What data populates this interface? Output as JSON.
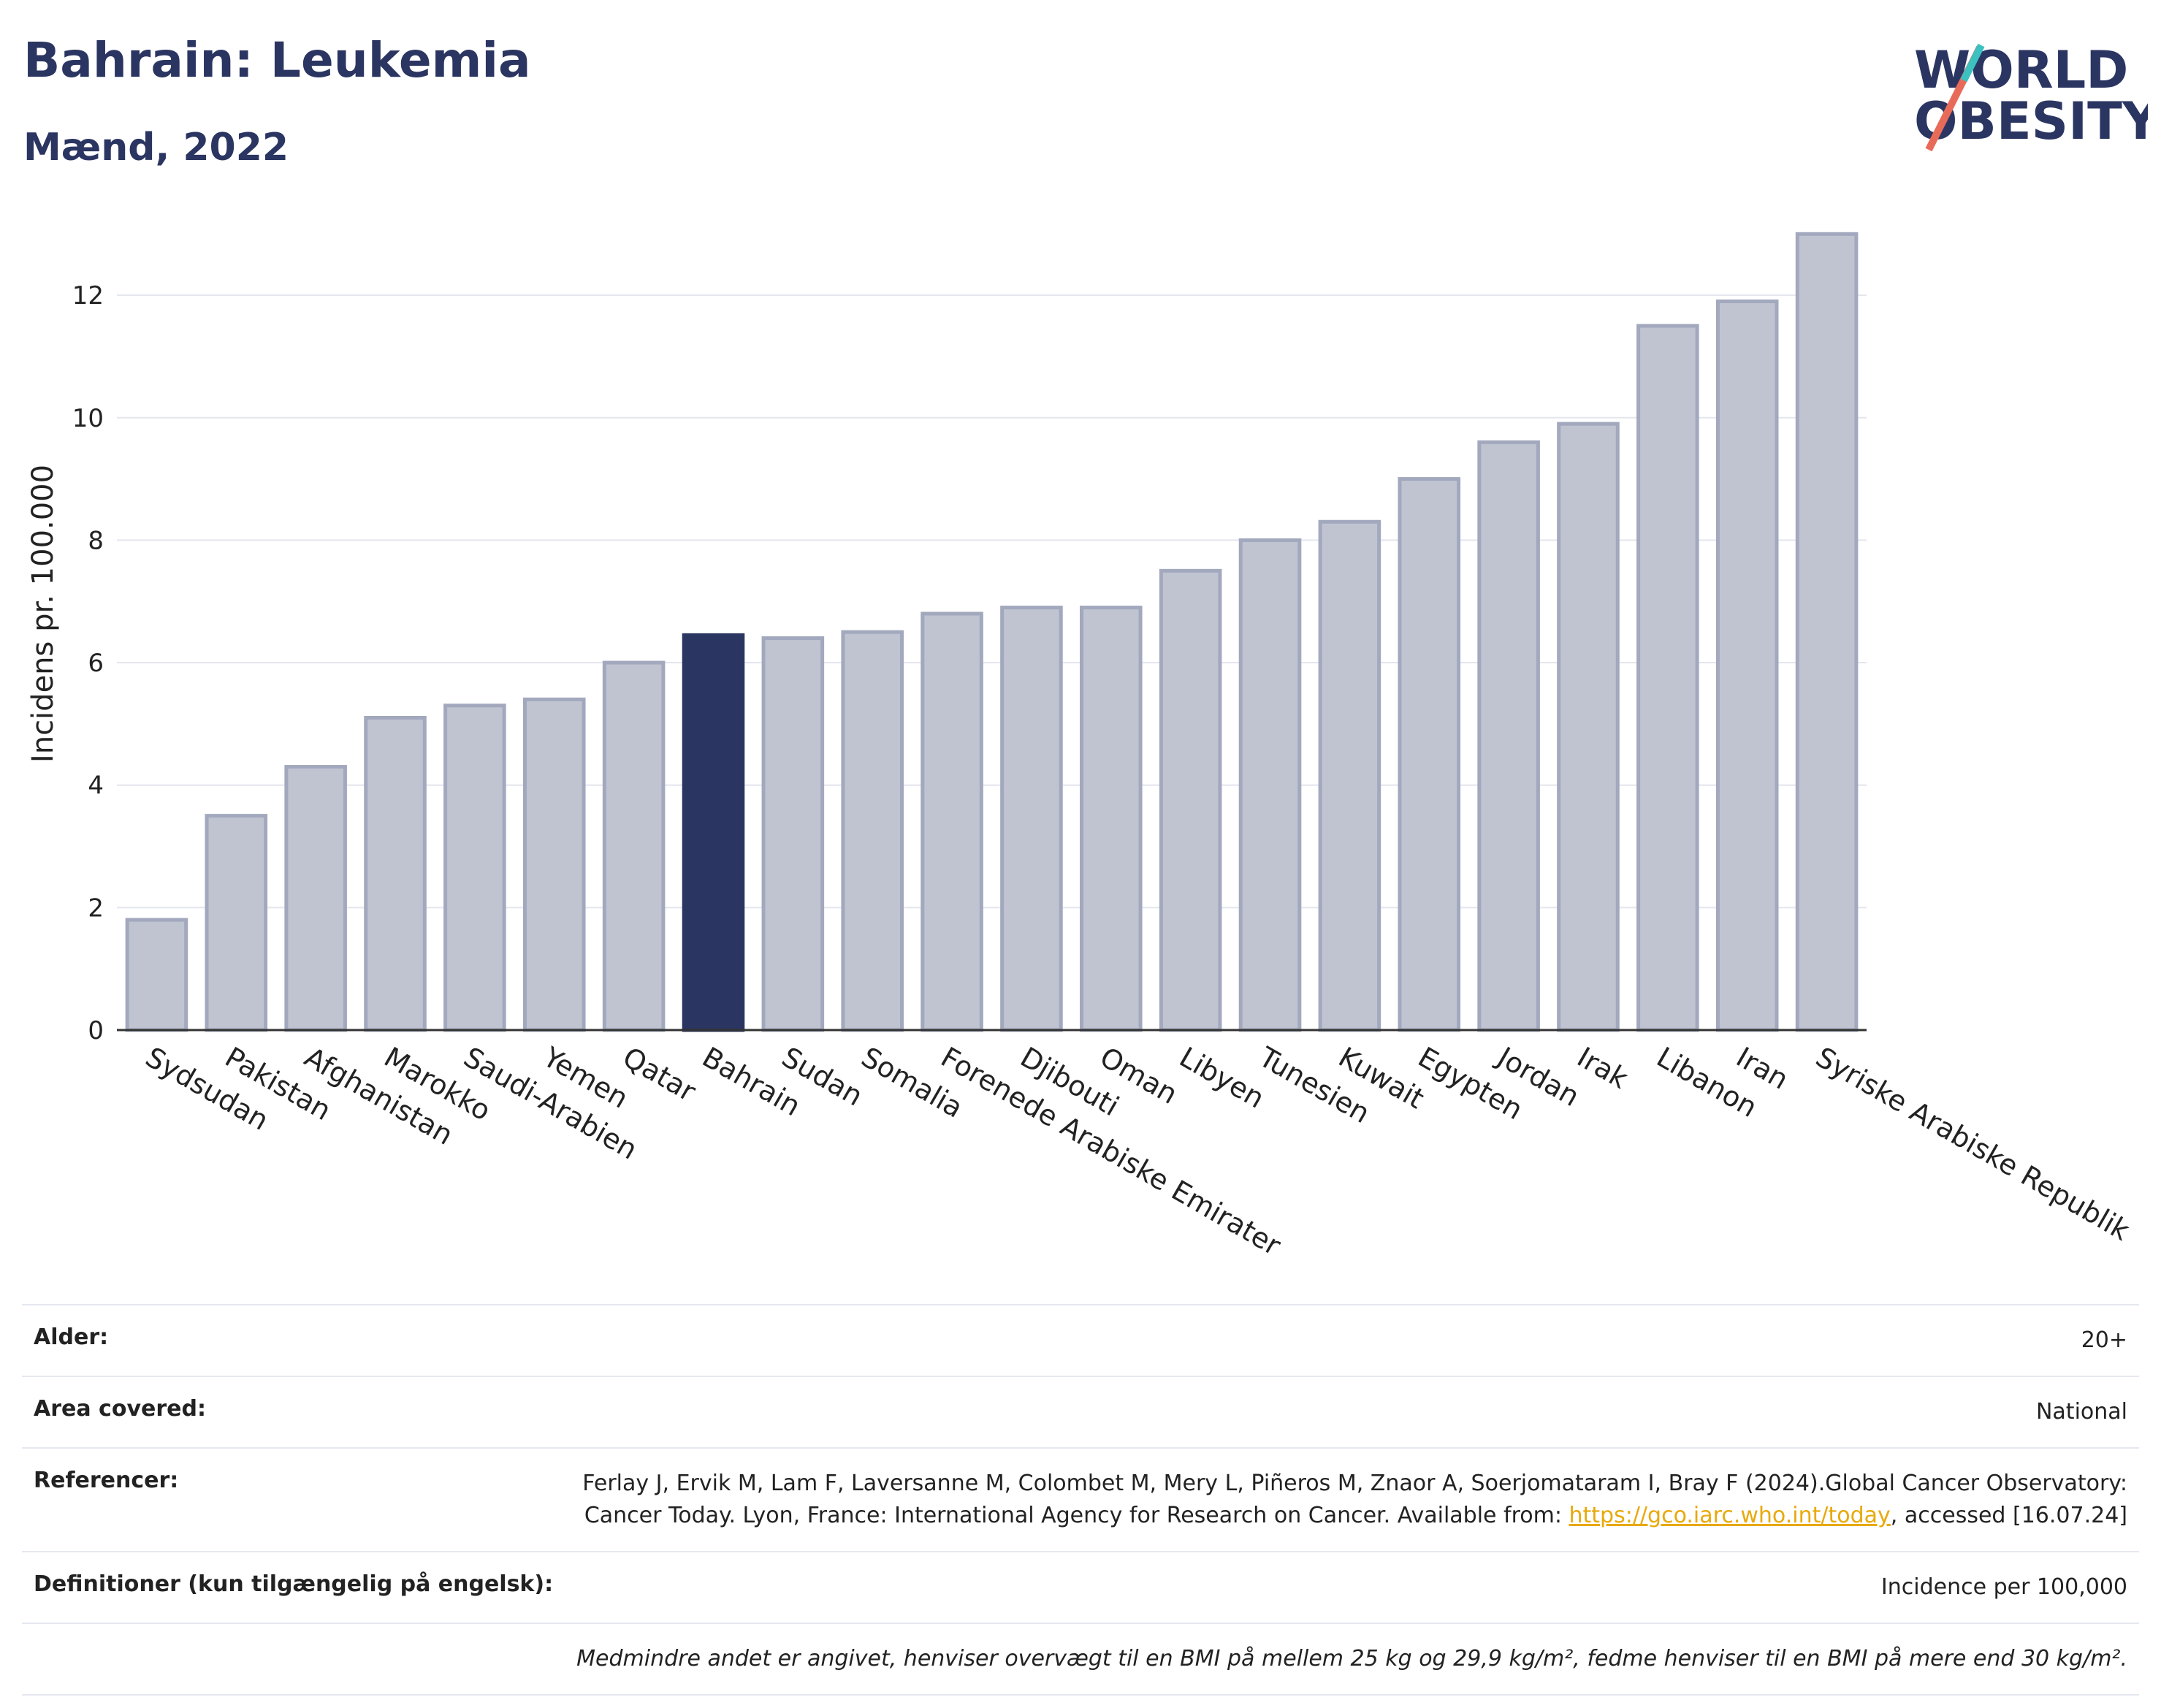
{
  "header": {
    "title": "Bahrain: Leukemia",
    "subtitle": "Mænd, 2022",
    "logo_line1": "WORLD",
    "logo_line2": "OBESITY"
  },
  "chart_data": {
    "type": "bar",
    "categories": [
      "Sydsudan",
      "Pakistan",
      "Afghanistan",
      "Marokko",
      "Saudi-Arabien",
      "Yemen",
      "Qatar",
      "Bahrain",
      "Sudan",
      "Somalia",
      "Forenede Arabiske Emirater",
      "Djibouti",
      "Oman",
      "Libyen",
      "Tunesien",
      "Kuwait",
      "Egypten",
      "Jordan",
      "Irak",
      "Libanon",
      "Iran",
      "Syriske Arabiske Republik"
    ],
    "values": [
      1.8,
      3.5,
      4.3,
      5.1,
      5.3,
      5.4,
      6.0,
      6.45,
      6.4,
      6.5,
      6.8,
      6.9,
      6.9,
      7.5,
      8.0,
      8.3,
      9.0,
      9.6,
      9.9,
      11.5,
      11.9,
      13.0
    ],
    "highlight": "Bahrain",
    "ylabel": "Incidens pr. 100.000",
    "xlabel": "",
    "ylim": [
      0,
      13.6
    ],
    "yticks": [
      0,
      2,
      4,
      6,
      8,
      10,
      12
    ],
    "grid": true,
    "colors": {
      "bar": "#c0c4d1",
      "bar_edge": "#a2a8bd",
      "highlight": "#2b3561"
    }
  },
  "info": {
    "age_label": "Alder:",
    "age_value": "20+",
    "area_label": "Area covered:",
    "area_value": "National",
    "ref_label": "Referencer:",
    "ref_text_1": "Ferlay J, Ervik M, Lam F, Laversanne M, Colombet M, Mery L, Piñeros M, Znaor A, Soerjomataram I, Bray F (2024).Global Cancer Observatory: Cancer Today. Lyon, France: International Agency for Research on Cancer. Available from: ",
    "ref_link": "https://gco.iarc.who.int/today",
    "ref_text_2": ", accessed [16.07.24]",
    "def_label": "Definitioner (kun tilgængelig på engelsk):",
    "def_value": "Incidence per 100,000",
    "note": "Medmindre andet er angivet, henviser overvægt til en BMI på mellem 25 kg og 29,9 kg/m², fedme henviser til en BMI på mere end 30 kg/m²."
  }
}
